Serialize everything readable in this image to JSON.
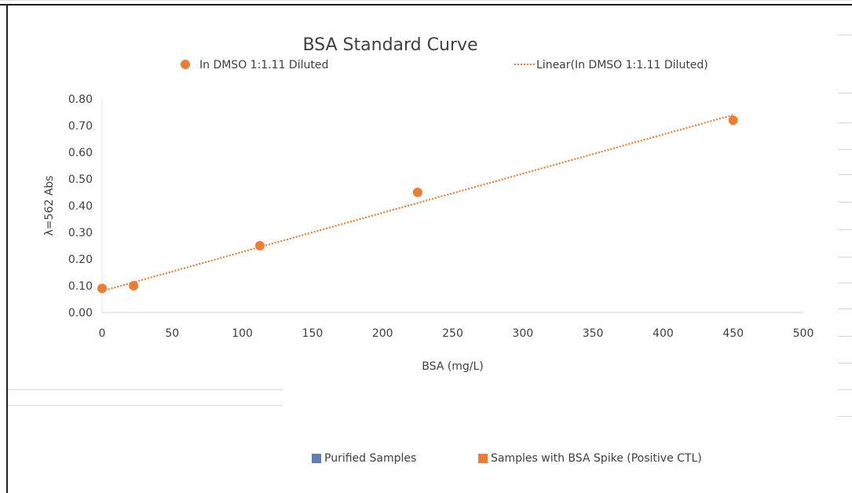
{
  "chart_data": {
    "type": "scatter",
    "title": "BSA Standard Curve",
    "xlabel": "BSA (mg/L)",
    "ylabel": "λ=562 Abs",
    "xlim": [
      0,
      500
    ],
    "ylim": [
      0,
      0.8
    ],
    "x_ticks": [
      "0",
      "50",
      "100",
      "150",
      "200",
      "250",
      "300",
      "350",
      "400",
      "450",
      "500"
    ],
    "y_ticks": [
      "0.00",
      "0.10",
      "0.20",
      "0.30",
      "0.40",
      "0.50",
      "0.60",
      "0.70",
      "0.80"
    ],
    "grid": false,
    "legend_position": "top",
    "series": [
      {
        "name": "In DMSO 1:1.11 Diluted",
        "color": "#ed7d31",
        "x": [
          0,
          22.5,
          112.5,
          225,
          450
        ],
        "y": [
          0.09,
          0.1,
          0.25,
          0.45,
          0.72
        ]
      }
    ],
    "trendline": {
      "name": "Linear(In DMSO 1:1.11 Diluted)",
      "color": "#ed7d31",
      "style": "dotted",
      "x": [
        0,
        450
      ],
      "y": [
        0.08,
        0.74
      ]
    }
  },
  "secondary_legend": [
    {
      "label": "Purified Samples",
      "color": "#5b7fb6"
    },
    {
      "label": "Samples with BSA Spike (Positive CTL)",
      "color": "#ed7d31"
    }
  ]
}
